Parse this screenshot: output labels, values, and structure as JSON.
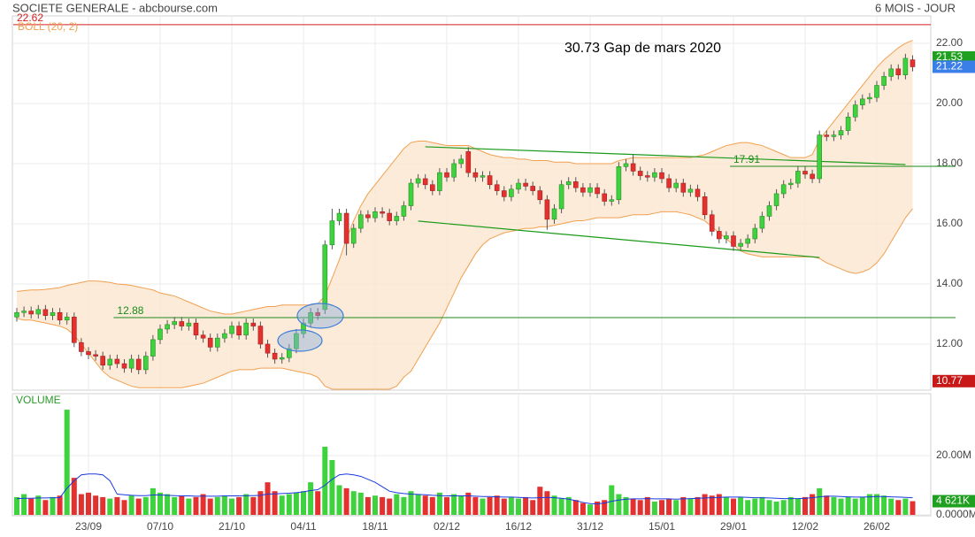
{
  "chart_data": {
    "type": "candlestick",
    "title": "SOCIETE GENERALE - abcbourse.com",
    "subtitle": "6 MOIS - JOUR",
    "annotation": "30.73 Gap de mars 2020",
    "categories": [
      null,
      null,
      null,
      null,
      null,
      null,
      null,
      null,
      null,
      null,
      "23/09",
      null,
      null,
      null,
      null,
      null,
      null,
      null,
      null,
      null,
      "07/10",
      null,
      null,
      null,
      null,
      null,
      null,
      null,
      null,
      null,
      "21/10",
      null,
      null,
      null,
      null,
      null,
      null,
      null,
      null,
      null,
      "04/11",
      null,
      null,
      null,
      null,
      null,
      null,
      null,
      null,
      null,
      "18/11",
      null,
      null,
      null,
      null,
      null,
      null,
      null,
      null,
      null,
      "02/12",
      null,
      null,
      null,
      null,
      null,
      null,
      null,
      null,
      null,
      "16/12",
      null,
      null,
      null,
      null,
      null,
      null,
      null,
      null,
      null,
      "31/12",
      null,
      null,
      null,
      null,
      null,
      null,
      null,
      null,
      null,
      "15/01",
      null,
      null,
      null,
      null,
      null,
      null,
      null,
      null,
      null,
      "29/01",
      null,
      null,
      null,
      null,
      null,
      null,
      null,
      null,
      null,
      "12/02",
      null,
      null,
      null,
      null,
      null,
      null,
      null,
      null,
      null,
      "26/02",
      null,
      null,
      null,
      null,
      null
    ],
    "open": [
      12.9,
      13.05,
      13.1,
      13.0,
      13.15,
      12.95,
      13.05,
      12.8,
      12.9,
      12.05,
      11.75,
      11.65,
      11.6,
      11.3,
      11.5,
      11.35,
      11.2,
      11.5,
      11.15,
      11.6,
      12.15,
      12.5,
      12.65,
      12.75,
      12.6,
      12.7,
      12.3,
      12.2,
      11.9,
      12.2,
      12.35,
      12.6,
      12.3,
      12.7,
      12.6,
      12.0,
      11.7,
      11.5,
      11.55,
      11.85,
      12.35,
      12.7,
      13.05,
      13.15,
      15.3,
      16.1,
      16.35,
      15.35,
      15.85,
      16.3,
      16.2,
      16.4,
      16.35,
      16.1,
      16.25,
      16.6,
      17.35,
      17.5,
      17.3,
      17.1,
      17.7,
      17.55,
      18.0,
      18.4,
      17.7,
      17.55,
      17.6,
      17.3,
      17.1,
      16.9,
      17.15,
      17.35,
      17.25,
      17.1,
      16.8,
      16.15,
      16.5,
      17.3,
      17.4,
      17.2,
      17.05,
      17.2,
      17.0,
      16.75,
      16.8,
      17.9,
      18.0,
      17.75,
      17.6,
      17.55,
      17.7,
      17.5,
      17.2,
      17.35,
      17.05,
      17.15,
      16.9,
      16.3,
      15.75,
      15.5,
      15.6,
      15.25,
      15.35,
      15.5,
      15.85,
      16.25,
      16.6,
      17.0,
      17.3,
      17.35,
      17.75,
      17.65,
      17.5,
      18.95,
      18.9,
      18.95,
      19.1,
      19.55,
      19.95,
      20.15,
      20.2,
      20.6,
      20.9,
      21.15,
      20.95,
      21.45
    ],
    "high": [
      13.2,
      13.25,
      13.25,
      13.3,
      13.3,
      13.2,
      13.2,
      13.05,
      13.05,
      12.2,
      11.9,
      11.8,
      11.75,
      11.65,
      11.65,
      11.5,
      11.65,
      11.65,
      11.75,
      12.3,
      12.65,
      12.8,
      12.9,
      12.9,
      12.85,
      12.85,
      12.45,
      12.35,
      12.35,
      12.5,
      12.75,
      12.75,
      12.85,
      12.85,
      12.75,
      12.15,
      11.85,
      11.7,
      12.0,
      12.5,
      12.85,
      13.2,
      13.2,
      15.45,
      16.5,
      16.5,
      16.5,
      16.0,
      16.45,
      16.45,
      16.55,
      16.55,
      16.5,
      16.4,
      16.75,
      17.5,
      17.65,
      17.65,
      17.45,
      17.85,
      17.85,
      18.15,
      18.3,
      18.55,
      17.85,
      17.75,
      17.75,
      17.45,
      17.25,
      17.3,
      17.5,
      17.5,
      17.4,
      17.25,
      16.95,
      16.65,
      17.45,
      17.55,
      17.55,
      17.35,
      17.35,
      17.35,
      17.15,
      16.95,
      18.05,
      18.15,
      18.3,
      17.9,
      17.75,
      17.85,
      17.85,
      17.65,
      17.5,
      17.5,
      17.3,
      17.3,
      17.05,
      16.45,
      15.9,
      15.75,
      15.75,
      15.5,
      15.65,
      16.0,
      16.4,
      16.75,
      17.15,
      17.45,
      17.5,
      17.9,
      17.9,
      17.8,
      19.1,
      19.1,
      19.1,
      19.25,
      19.7,
      20.1,
      20.3,
      20.35,
      20.75,
      21.05,
      21.3,
      21.3,
      21.65,
      21.6
    ],
    "low": [
      12.75,
      12.9,
      12.85,
      12.85,
      12.8,
      12.8,
      12.65,
      12.65,
      11.9,
      11.6,
      11.5,
      11.45,
      11.15,
      11.15,
      11.2,
      11.05,
      11.05,
      11.0,
      11.0,
      11.45,
      12.0,
      12.35,
      12.5,
      12.45,
      12.45,
      12.15,
      12.05,
      11.75,
      11.75,
      12.05,
      12.2,
      12.15,
      12.15,
      12.45,
      11.85,
      11.55,
      11.35,
      11.35,
      11.4,
      11.7,
      12.2,
      12.55,
      12.8,
      13.0,
      15.15,
      15.95,
      14.95,
      15.2,
      15.7,
      16.05,
      16.05,
      16.2,
      15.95,
      15.95,
      16.1,
      16.45,
      17.2,
      17.15,
      16.95,
      16.95,
      17.4,
      17.4,
      17.85,
      17.55,
      17.4,
      17.4,
      17.15,
      16.95,
      16.75,
      16.75,
      17.0,
      17.1,
      16.95,
      16.65,
      15.8,
      16.0,
      16.35,
      17.15,
      17.05,
      16.9,
      16.9,
      16.85,
      16.6,
      16.6,
      16.65,
      17.75,
      17.6,
      17.45,
      17.4,
      17.4,
      17.35,
      17.05,
      17.05,
      16.9,
      16.9,
      16.75,
      16.15,
      15.6,
      15.35,
      15.35,
      15.1,
      15.1,
      15.2,
      15.35,
      15.7,
      16.1,
      16.45,
      16.85,
      17.15,
      17.2,
      17.5,
      17.35,
      17.35,
      18.75,
      18.75,
      18.8,
      18.95,
      19.4,
      19.8,
      20.0,
      20.05,
      20.45,
      20.75,
      20.8,
      20.8,
      21.07
    ],
    "close": [
      13.05,
      13.1,
      13.0,
      13.15,
      12.95,
      13.05,
      12.8,
      12.9,
      12.05,
      11.75,
      11.65,
      11.6,
      11.3,
      11.5,
      11.35,
      11.2,
      11.5,
      11.15,
      11.6,
      12.15,
      12.5,
      12.65,
      12.75,
      12.6,
      12.7,
      12.3,
      12.2,
      11.9,
      12.2,
      12.35,
      12.6,
      12.3,
      12.7,
      12.6,
      12.0,
      11.7,
      11.5,
      11.55,
      11.85,
      12.35,
      12.7,
      13.05,
      12.95,
      15.3,
      16.1,
      16.35,
      15.35,
      15.85,
      16.3,
      16.2,
      16.4,
      16.35,
      16.1,
      16.25,
      16.6,
      17.35,
      17.5,
      17.3,
      17.1,
      17.7,
      17.55,
      18.0,
      18.15,
      17.7,
      17.55,
      17.6,
      17.3,
      17.1,
      16.9,
      17.15,
      17.35,
      17.25,
      17.1,
      16.8,
      16.15,
      16.5,
      17.3,
      17.4,
      17.2,
      17.05,
      17.2,
      17.0,
      16.75,
      16.8,
      17.9,
      18.0,
      17.75,
      17.6,
      17.55,
      17.7,
      17.5,
      17.2,
      17.35,
      17.05,
      17.15,
      16.9,
      16.3,
      15.75,
      15.5,
      15.6,
      15.25,
      15.35,
      15.5,
      15.85,
      16.25,
      16.6,
      17.0,
      17.3,
      17.35,
      17.75,
      17.65,
      17.5,
      18.95,
      18.9,
      18.95,
      19.1,
      19.55,
      19.95,
      20.15,
      20.2,
      20.6,
      20.9,
      21.15,
      20.95,
      21.5,
      21.22
    ],
    "up_color": "#3fd23f",
    "down_color": "#e53030",
    "ylim": [
      10.47,
      22.91
    ],
    "yticks": [
      {
        "value": 12,
        "label": "12.00"
      },
      {
        "value": 14,
        "label": "14.00"
      },
      {
        "value": 16,
        "label": "16.00"
      },
      {
        "value": 18,
        "label": "18.00"
      },
      {
        "value": 20,
        "label": "20.00"
      },
      {
        "value": 22,
        "label": "22.00"
      }
    ],
    "grid": true,
    "bands": {
      "label": "BOLL (20, 2)",
      "color": "#f0a050",
      "fill": "#fde6cf",
      "upper": [
        13.75,
        13.78,
        13.8,
        13.8,
        13.82,
        13.85,
        13.88,
        13.95,
        14.0,
        14.05,
        14.1,
        14.1,
        14.08,
        14.05,
        14.0,
        13.98,
        13.95,
        13.9,
        13.85,
        13.8,
        13.7,
        13.65,
        13.6,
        13.5,
        13.4,
        13.3,
        13.2,
        13.1,
        13.05,
        13.0,
        13.0,
        13.05,
        13.1,
        13.15,
        13.2,
        13.25,
        13.25,
        13.3,
        13.3,
        13.3,
        13.3,
        13.3,
        13.35,
        13.6,
        14.2,
        14.8,
        15.5,
        16.1,
        16.6,
        17.0,
        17.3,
        17.6,
        17.9,
        18.2,
        18.5,
        18.7,
        18.75,
        18.75,
        18.7,
        18.65,
        18.6,
        18.6,
        18.6,
        18.6,
        18.5,
        18.4,
        18.3,
        18.25,
        18.2,
        18.2,
        18.15,
        18.15,
        18.1,
        18.1,
        18.1,
        18.05,
        18.05,
        18.05,
        18.0,
        18.0,
        18.0,
        18.0,
        18.0,
        18.0,
        18.1,
        18.15,
        18.2,
        18.2,
        18.2,
        18.2,
        18.2,
        18.2,
        18.2,
        18.2,
        18.2,
        18.25,
        18.3,
        18.4,
        18.5,
        18.6,
        18.65,
        18.7,
        18.7,
        18.65,
        18.6,
        18.5,
        18.4,
        18.3,
        18.2,
        18.2,
        18.2,
        18.3,
        18.8,
        19.1,
        19.4,
        19.7,
        20.0,
        20.3,
        20.6,
        20.9,
        21.2,
        21.45,
        21.65,
        21.85,
        22.0,
        22.1
      ],
      "lower": [
        12.85,
        12.8,
        12.8,
        12.75,
        12.7,
        12.65,
        12.6,
        12.5,
        12.3,
        12.0,
        11.7,
        11.4,
        11.1,
        10.9,
        10.8,
        10.7,
        10.6,
        10.55,
        10.55,
        10.55,
        10.55,
        10.55,
        10.55,
        10.55,
        10.6,
        10.65,
        10.7,
        10.8,
        10.9,
        11.0,
        11.1,
        11.15,
        11.15,
        11.15,
        11.2,
        11.2,
        11.2,
        11.2,
        11.15,
        11.1,
        11.05,
        11.0,
        10.9,
        10.6,
        10.5,
        10.5,
        10.5,
        10.5,
        10.5,
        10.5,
        10.5,
        10.5,
        10.5,
        10.6,
        10.9,
        11.1,
        11.5,
        11.9,
        12.3,
        12.7,
        13.2,
        13.7,
        14.2,
        14.6,
        15.0,
        15.3,
        15.5,
        15.6,
        15.7,
        15.75,
        15.8,
        15.85,
        15.85,
        15.9,
        15.9,
        15.95,
        16.0,
        16.05,
        16.1,
        16.1,
        16.15,
        16.2,
        16.2,
        16.2,
        16.2,
        16.25,
        16.3,
        16.3,
        16.3,
        16.35,
        16.4,
        16.4,
        16.4,
        16.35,
        16.3,
        16.2,
        16.1,
        15.9,
        15.7,
        15.5,
        15.3,
        15.1,
        15.0,
        14.95,
        14.9,
        14.9,
        14.9,
        14.9,
        14.9,
        14.9,
        14.9,
        14.9,
        14.85,
        14.7,
        14.6,
        14.5,
        14.4,
        14.35,
        14.4,
        14.5,
        14.7,
        15.0,
        15.4,
        15.8,
        16.2,
        16.5
      ]
    },
    "levels": [
      {
        "value": 22.62,
        "color": "#d42020",
        "from": 0
      },
      {
        "value": 12.88,
        "color": "#1a8a1a",
        "from": 14
      },
      {
        "value": 17.91,
        "color": "#1a8a1a",
        "from": 100
      }
    ],
    "trendlines": [
      {
        "x": [
          57,
          124
        ],
        "y": [
          18.56,
          17.97
        ],
        "color": "#1a9a1a"
      },
      {
        "x": [
          56,
          112
        ],
        "y": [
          16.09,
          14.88
        ],
        "color": "#1a9a1a"
      }
    ],
    "markers": [
      {
        "value": 21.53,
        "color": "#20a020"
      },
      {
        "value": 21.22,
        "color": "#3a7ee8"
      },
      {
        "value": 10.77,
        "color": "#c81818"
      }
    ],
    "volume": {
      "label": "VOLUME",
      "values": [
        6,
        7,
        5.5,
        6.5,
        5,
        6,
        6.5,
        35.5,
        12.5,
        7,
        7.5,
        6.5,
        6,
        5.5,
        6,
        5,
        6.5,
        5.5,
        6,
        9,
        7.5,
        7,
        6,
        6.5,
        5.5,
        6,
        7,
        5.5,
        6,
        6.5,
        5.5,
        6,
        7,
        6,
        8,
        11,
        8,
        6.5,
        7,
        7.5,
        8,
        11,
        8,
        23,
        18.5,
        10,
        9,
        8,
        7.5,
        6,
        6.5,
        6,
        5.5,
        7,
        6,
        8,
        7,
        6.5,
        6,
        7.5,
        6,
        7,
        6.5,
        7.5,
        6,
        5.5,
        6,
        6.5,
        5.5,
        6,
        5.5,
        6,
        5,
        9.5,
        8,
        6.5,
        5.5,
        6,
        5,
        4,
        3.5,
        4.5,
        5,
        10,
        7,
        6,
        5.5,
        5,
        6,
        4.5,
        5,
        5.5,
        5,
        6,
        5.5,
        6,
        7,
        6.5,
        7,
        6,
        5.5,
        6,
        5,
        5.5,
        6,
        5,
        4.5,
        5,
        6,
        5.5,
        6,
        7,
        9,
        6.5,
        6,
        5.5,
        6,
        5.5,
        6,
        7,
        7,
        6.5,
        5.5,
        5,
        5.5,
        4.621
      ],
      "ma": [
        5.5,
        5.6,
        5.6,
        5.7,
        5.7,
        5.8,
        5.8,
        9,
        11.5,
        13.5,
        13.8,
        13.8,
        13.5,
        11.5,
        7,
        6.8,
        6.6,
        6.5,
        6.5,
        6.7,
        6.7,
        6.6,
        6.5,
        6.4,
        6.4,
        6.3,
        6.3,
        6.3,
        6.3,
        6.4,
        6.4,
        6.4,
        6.5,
        6.5,
        6.6,
        7,
        7.1,
        7.2,
        7.3,
        7.5,
        7.8,
        8.2,
        8.5,
        10,
        12,
        13.5,
        13.8,
        13.5,
        13,
        12,
        11,
        9.5,
        8,
        7.5,
        7.2,
        7,
        6.9,
        6.8,
        6.6,
        6.5,
        6.4,
        6.4,
        6.4,
        6.4,
        6.3,
        6.2,
        6.2,
        6.1,
        6,
        6,
        5.9,
        5.8,
        5.7,
        5.8,
        5.9,
        5.8,
        5.6,
        5.3,
        4.8,
        4.2,
        3.8,
        3.7,
        4.0,
        4.6,
        5.0,
        5.3,
        5.4,
        5.4,
        5.5,
        5.4,
        5.4,
        5.4,
        5.3,
        5.4,
        5.5,
        5.6,
        5.7,
        5.8,
        5.9,
        6,
        6,
        6,
        5.9,
        5.8,
        5.8,
        5.7,
        5.6,
        5.5,
        5.5,
        5.5,
        5.6,
        5.8,
        6.1,
        6.3,
        6.3,
        6.2,
        6.1,
        6.0,
        6.0,
        6.1,
        6.2,
        6.2,
        6.1,
        6.0,
        5.9,
        5.8
      ],
      "ma_color": "#1a3adf",
      "ylim": [
        0,
        40.9
      ],
      "yticks": [
        {
          "value": 0,
          "label": "0.0000M"
        },
        {
          "value": 20,
          "label": "20.00M"
        }
      ],
      "marker": {
        "value": 4.621,
        "label": "4 621K",
        "color": "#20a020"
      }
    }
  }
}
